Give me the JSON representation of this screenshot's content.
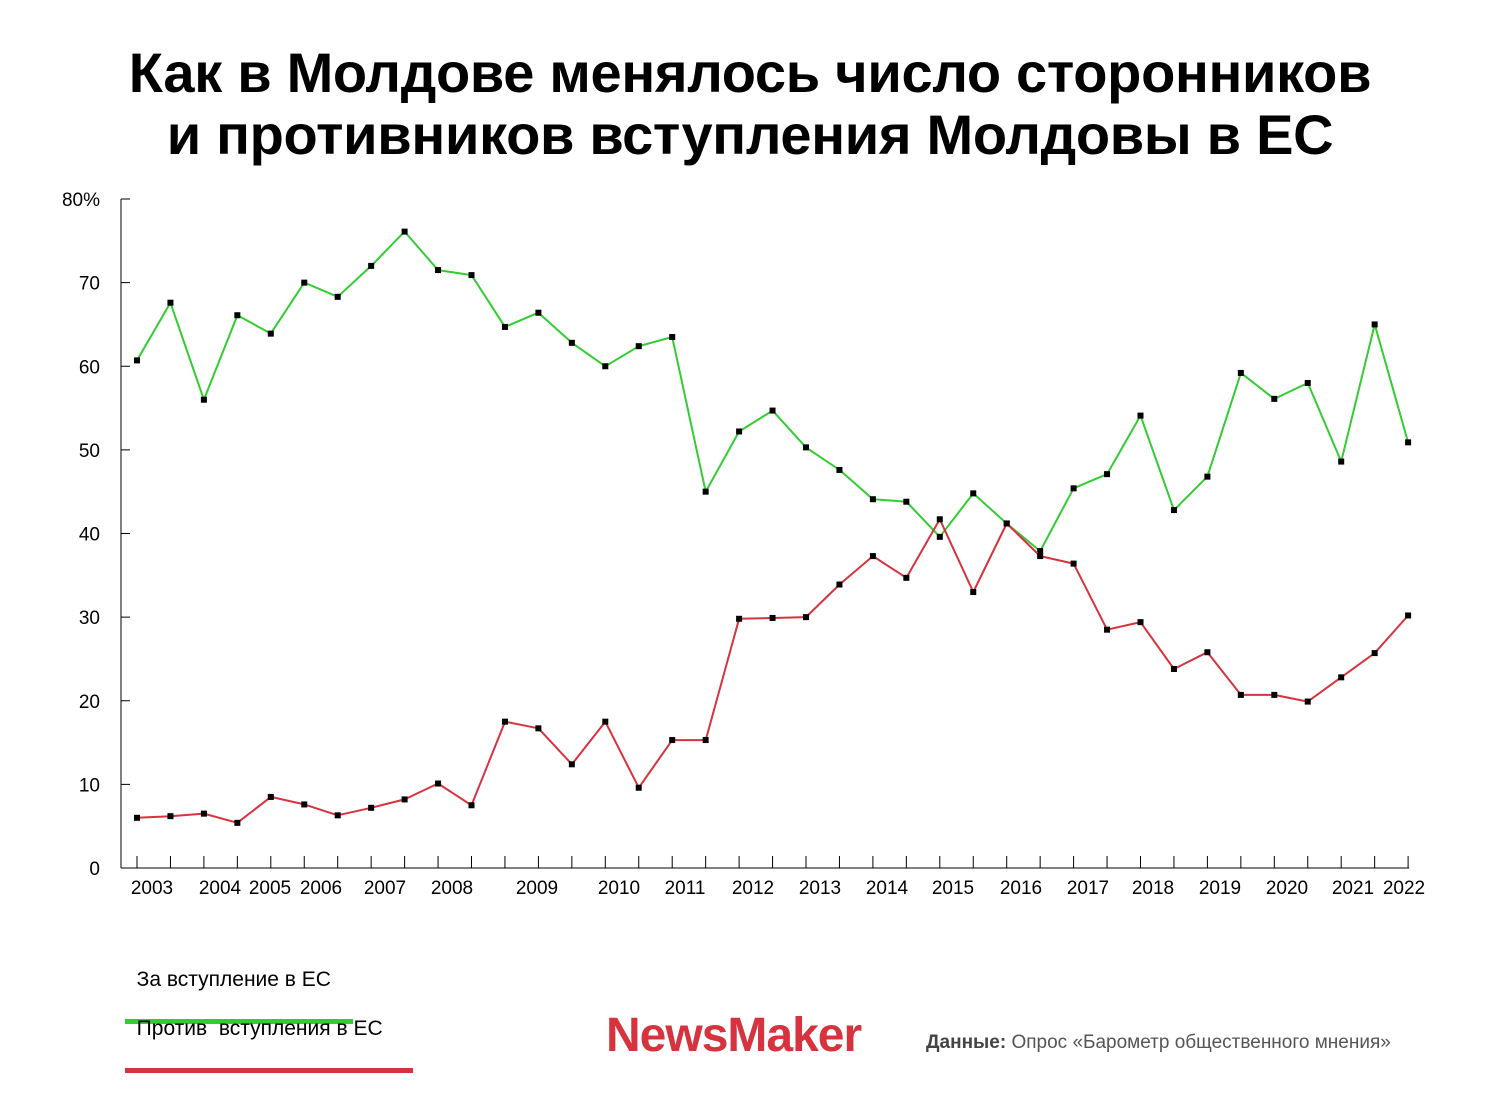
{
  "title": {
    "line1": "Как в Молдове менялось число сторонников",
    "line2": "и противников вступления Молдовы в ЕС"
  },
  "legend": {
    "pro_label": "За вступление в ЕС",
    "contra_label": "Против  вступления в ЕС"
  },
  "brand": {
    "logo": "NewsMaker"
  },
  "source": {
    "label": "Данные:",
    "text": "Опрос «Барометр общественного мнения»"
  },
  "colors": {
    "pro": "#33cc33",
    "contra": "#d7333f",
    "marker": "#000000",
    "axis": "#000000"
  },
  "chart_data": {
    "type": "line",
    "title": "Как в Молдове менялось число сторонников и противников вступления Молдовы в ЕС",
    "ylim": [
      0,
      80
    ],
    "y_ticks": [
      "0",
      "10",
      "20",
      "30",
      "40",
      "50",
      "60",
      "70",
      "80%"
    ],
    "x_year_labels": [
      "2003",
      "2004",
      "2005",
      "2006",
      "2007",
      "2008",
      "2009",
      "2010",
      "2011",
      "2012",
      "2013",
      "2014",
      "2015",
      "2016",
      "2017",
      "2018",
      "2019",
      "2020",
      "2021",
      "2022"
    ],
    "series": [
      {
        "name": "За вступление в ЕС",
        "values": [
          60.7,
          67.6,
          56.0,
          66.1,
          63.9,
          70.0,
          68.3,
          72.0,
          76.1,
          71.5,
          70.9,
          64.7,
          66.4,
          62.8,
          60.0,
          62.4,
          63.5,
          45.0,
          52.2,
          54.7,
          50.3,
          47.6,
          44.1,
          43.8,
          39.6,
          44.8,
          41.2,
          37.9,
          45.4,
          47.1,
          54.1,
          42.8,
          46.8,
          59.2,
          56.1,
          58.0,
          48.6,
          65.0,
          50.9
        ]
      },
      {
        "name": "Против  вступления в ЕС",
        "values": [
          6.0,
          6.2,
          6.5,
          5.4,
          8.5,
          7.6,
          6.3,
          7.2,
          8.2,
          10.1,
          7.5,
          17.5,
          16.7,
          12.4,
          17.5,
          9.6,
          15.3,
          15.3,
          29.8,
          29.9,
          30.0,
          33.9,
          37.3,
          34.7,
          41.7,
          33.0,
          41.2,
          37.3,
          36.4,
          28.5,
          29.4,
          23.8,
          25.8,
          20.7,
          20.7,
          19.9,
          22.8,
          25.7,
          30.2
        ]
      }
    ]
  }
}
